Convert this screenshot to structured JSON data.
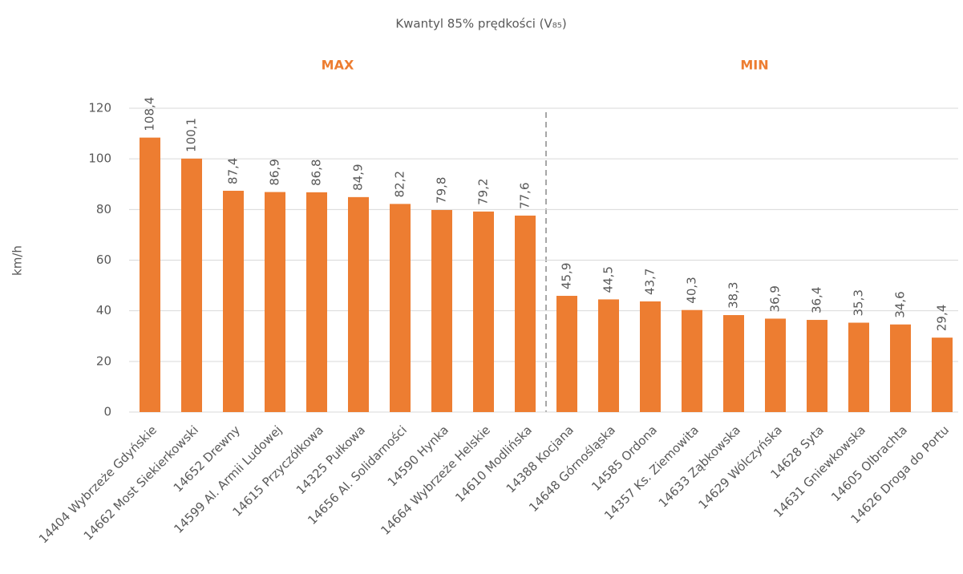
{
  "chart_data": {
    "type": "bar",
    "title": "Kwantyl 85% prędkości (V₈₅)",
    "y_label": "km/h",
    "annotations": [
      "MAX",
      "MIN"
    ],
    "categories": [
      "14404 Wybrzeże Gdyńskie",
      "14662 Most Siekierkowski",
      "14652 Drewny",
      "14599 Al. Armii Ludowej",
      "14615 Przyczółkowa",
      "14325 Pułkowa",
      "14656 Al. Solidarności",
      "14590 Hynka",
      "14664 Wybrzeże Helskie",
      "14610 Modlińska",
      "14388 Kocjana",
      "14648 Górnośląska",
      "14585 Ordona",
      "14357 Ks. Ziemowita",
      "14633 Ząbkowska",
      "14629 Wólczyńska",
      "14628 Syta",
      "14631 Gniewkowska",
      "14605 Olbrachta",
      "14626 Droga do Portu"
    ],
    "values": [
      108.4,
      100.1,
      87.4,
      86.9,
      86.8,
      84.9,
      82.2,
      79.8,
      79.2,
      77.6,
      45.9,
      44.5,
      43.7,
      40.3,
      38.3,
      36.9,
      36.4,
      35.3,
      34.6,
      29.4
    ],
    "value_labels": [
      "108,4",
      "100,1",
      "87,4",
      "86,9",
      "86,8",
      "84,9",
      "82,2",
      "79,8",
      "79,2",
      "77,6",
      "45,9",
      "44,5",
      "43,7",
      "40,3",
      "38,3",
      "36,9",
      "36,4",
      "35,3",
      "34,6",
      "29,4"
    ],
    "color": "#ED7D31",
    "ylim": [
      0,
      120
    ],
    "yticks": [
      0,
      20,
      40,
      60,
      80,
      100,
      120
    ],
    "grid": true
  }
}
